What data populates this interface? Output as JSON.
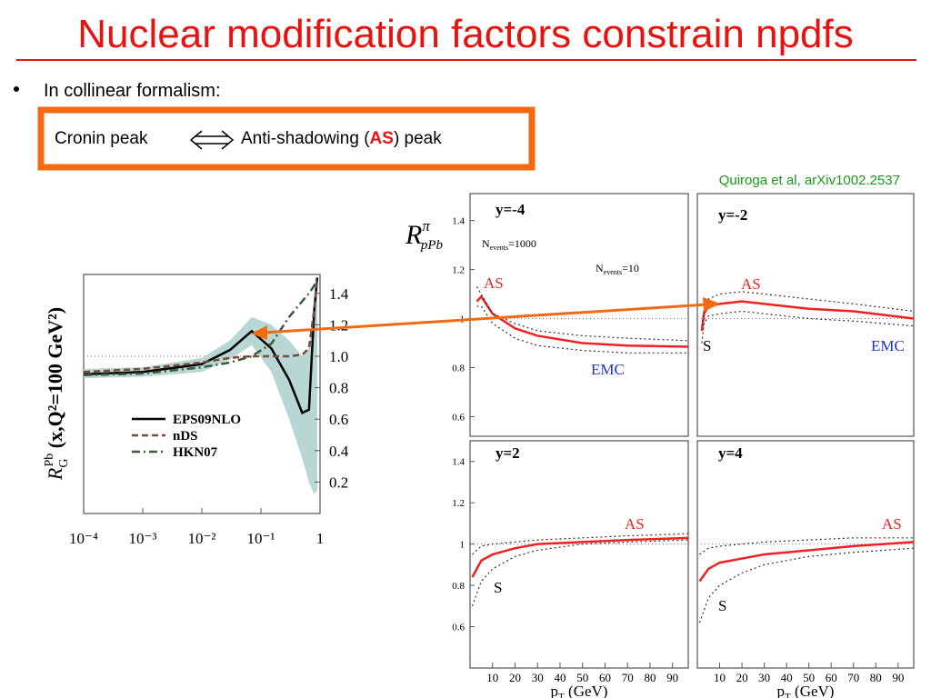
{
  "title": "Nuclear modification factors constrain npdfs",
  "bullet": "In collinear formalism:",
  "box": {
    "left": "Cronin peak",
    "right_pre": "Anti-shadowing (",
    "right_em": "AS",
    "right_post": ") peak"
  },
  "citation": "Quiroga et al, arXiv1002.2537",
  "ratio_label": {
    "symbol": "R",
    "sup": "π",
    "sub": "pPb"
  },
  "chart_data": [
    {
      "type": "line",
      "xscale": "log",
      "xlim": [
        0.0001,
        1
      ],
      "ylim": [
        0,
        1.52
      ],
      "xticks": [
        {
          "value": 0.0001,
          "label": "10⁻⁴"
        },
        {
          "value": 0.001,
          "label": "10⁻³"
        },
        {
          "value": 0.01,
          "label": "10⁻²"
        },
        {
          "value": 0.1,
          "label": "10⁻¹"
        },
        1
      ],
      "yticks": [
        0.2,
        0.4,
        0.6,
        0.8,
        {
          "value": 1,
          "label": "1.0"
        },
        1.2,
        1.4
      ],
      "ylabel": {
        "symbol": "R",
        "sub": "G",
        "sup": "Pb",
        "rest": " (x,Q²=100 GeV²)"
      },
      "reference_line": 1,
      "x": [
        0.0001,
        0.001,
        0.01,
        0.03,
        0.07,
        0.15,
        0.3,
        0.5,
        0.65,
        0.8,
        0.9
      ],
      "series": [
        {
          "name": "EPS09NLO",
          "color": "#000000",
          "style": "solid",
          "values": [
            0.885,
            0.9,
            0.95,
            1.04,
            1.16,
            1.05,
            0.85,
            0.64,
            0.66,
            1.3,
            1.5
          ],
          "band": {
            "color": "#b7d6d4",
            "lower": [
              0.86,
              0.87,
              0.9,
              0.98,
              1.07,
              0.9,
              0.6,
              0.35,
              0.2,
              0.12,
              0.15
            ],
            "upper": [
              0.92,
              0.93,
              0.99,
              1.1,
              1.25,
              1.2,
              1.1,
              1.0,
              1.05,
              1.35,
              1.5
            ]
          }
        },
        {
          "name": "nDS",
          "color": "#7a4a3a",
          "style": "dashed",
          "values": [
            0.9,
            0.92,
            0.96,
            0.99,
            1.0,
            1.0,
            1.0,
            1.01,
            1.05,
            1.3,
            1.5
          ]
        },
        {
          "name": "HKN07",
          "color": "#3a5a3a",
          "style": "dashdot",
          "values": [
            0.88,
            0.89,
            0.93,
            0.96,
            1.0,
            1.08,
            1.25,
            1.35,
            1.4,
            1.45,
            1.5
          ]
        }
      ]
    },
    {
      "type": "line",
      "xlim": [
        0,
        97
      ],
      "ylim": [
        0.52,
        1.51
      ],
      "yticks": [
        0.6,
        0.8,
        1,
        1.2,
        1.4
      ],
      "reference_line": 1,
      "annotations": [
        {
          "text": "y=-4"
        },
        {
          "text": "N",
          "sub": "events",
          "rest": "=1000"
        },
        {
          "text": "N",
          "sub": "events",
          "rest": "=10"
        },
        {
          "text": "AS"
        },
        {
          "text": "EMC"
        }
      ],
      "x": [
        3,
        5,
        10,
        20,
        30,
        50,
        70,
        97
      ],
      "series": [
        {
          "color": "#ee2222",
          "style": "solid",
          "values": [
            1.07,
            1.09,
            1.02,
            0.96,
            0.93,
            0.9,
            0.89,
            0.885
          ]
        },
        {
          "color": "#333333",
          "style": "dotted",
          "values": [
            1.13,
            1.1,
            1.02,
            0.98,
            0.95,
            0.93,
            0.92,
            0.91
          ]
        },
        {
          "color": "#333333",
          "style": "dotted",
          "values": [
            1.05,
            1.05,
            0.98,
            0.92,
            0.89,
            0.87,
            0.86,
            0.86
          ]
        }
      ]
    },
    {
      "type": "line",
      "xlim": [
        0,
        97
      ],
      "ylim": [
        0.52,
        1.51
      ],
      "reference_line": 1,
      "annotations": [
        {
          "text": "y=-2"
        },
        {
          "text": "AS"
        },
        {
          "text": "S"
        },
        {
          "text": "EMC"
        }
      ],
      "x": [
        2,
        3,
        5,
        10,
        20,
        30,
        50,
        70,
        97
      ],
      "series": [
        {
          "color": "#ee2222",
          "style": "solid",
          "values": [
            0.95,
            1.02,
            1.05,
            1.06,
            1.07,
            1.06,
            1.04,
            1.03,
            1.0
          ]
        },
        {
          "color": "#333333",
          "style": "dotted",
          "values": [
            0.97,
            1.04,
            1.08,
            1.1,
            1.11,
            1.1,
            1.08,
            1.06,
            1.03
          ]
        },
        {
          "color": "#333333",
          "style": "dotted",
          "values": [
            0.9,
            0.98,
            1.01,
            1.02,
            1.03,
            1.02,
            1.0,
            0.99,
            0.97
          ]
        }
      ]
    },
    {
      "type": "line",
      "xlim": [
        0,
        97
      ],
      "ylim": [
        0.4,
        1.5
      ],
      "yticks": [
        0.6,
        0.8,
        1,
        1.2,
        1.4
      ],
      "xticks": [
        10,
        20,
        30,
        40,
        50,
        60,
        70,
        80,
        90
      ],
      "reference_line": 1,
      "xlabel": {
        "symbol": "p",
        "sub": "T",
        "rest": " (GeV)"
      },
      "annotations": [
        {
          "text": "y=2"
        },
        {
          "text": "AS"
        },
        {
          "text": "S"
        }
      ],
      "x": [
        1,
        5,
        10,
        20,
        30,
        50,
        70,
        97
      ],
      "series": [
        {
          "color": "#ee2222",
          "style": "solid",
          "values": [
            0.84,
            0.92,
            0.95,
            0.98,
            1.0,
            1.01,
            1.02,
            1.03
          ]
        },
        {
          "color": "#333333",
          "style": "dotted",
          "values": [
            0.95,
            0.99,
            1.0,
            1.01,
            1.02,
            1.03,
            1.04,
            1.05
          ]
        },
        {
          "color": "#333333",
          "style": "dotted",
          "values": [
            0.7,
            0.82,
            0.88,
            0.94,
            0.97,
            1.0,
            1.01,
            1.02
          ]
        }
      ]
    },
    {
      "type": "line",
      "xlim": [
        0,
        97
      ],
      "ylim": [
        0.4,
        1.5
      ],
      "xticks": [
        10,
        20,
        30,
        40,
        50,
        60,
        70,
        80,
        90
      ],
      "reference_line": 1,
      "xlabel": {
        "symbol": "p",
        "sub": "T",
        "rest": " (GeV)"
      },
      "annotations": [
        {
          "text": "y=4"
        },
        {
          "text": "AS"
        },
        {
          "text": "S"
        }
      ],
      "x": [
        1,
        5,
        10,
        20,
        30,
        50,
        70,
        97
      ],
      "series": [
        {
          "color": "#ee2222",
          "style": "solid",
          "values": [
            0.82,
            0.88,
            0.91,
            0.93,
            0.95,
            0.97,
            0.99,
            1.01
          ]
        },
        {
          "color": "#333333",
          "style": "dotted",
          "values": [
            0.95,
            0.98,
            0.99,
            1.0,
            1.01,
            1.02,
            1.03,
            1.03
          ]
        },
        {
          "color": "#333333",
          "style": "dotted",
          "values": [
            0.62,
            0.74,
            0.8,
            0.86,
            0.9,
            0.94,
            0.96,
            0.98
          ]
        }
      ]
    }
  ]
}
